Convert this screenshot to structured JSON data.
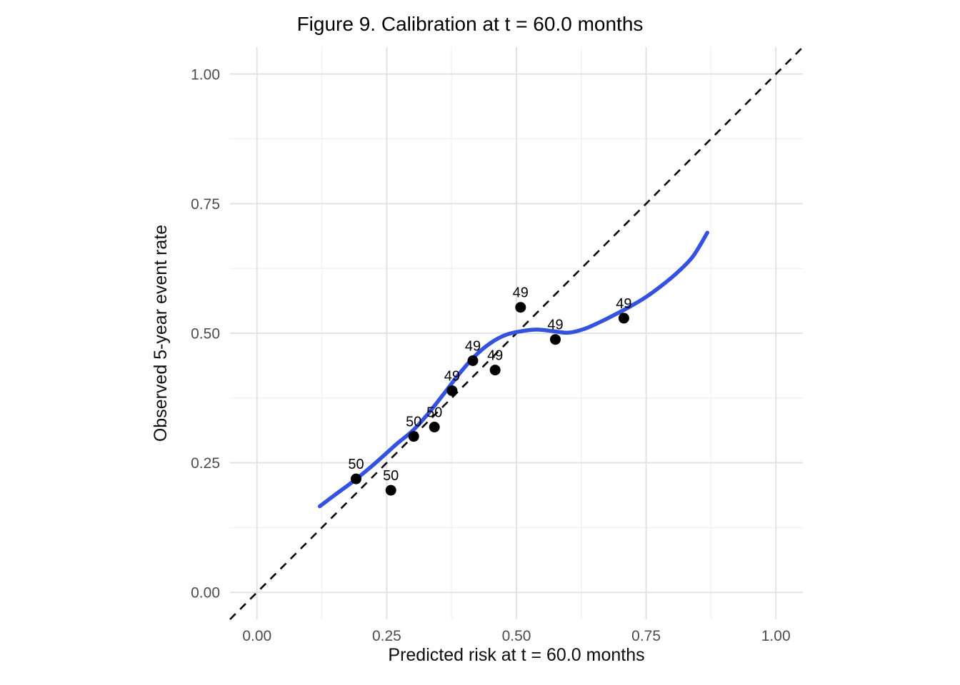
{
  "chart_data": {
    "type": "scatter",
    "title": "Figure 9. Calibration at t = 60.0 months",
    "xlabel": "Predicted risk at t = 60.0 months",
    "ylabel": "Observed 5-year event rate",
    "xlim": [
      -0.052,
      1.052
    ],
    "ylim": [
      -0.052,
      1.052
    ],
    "grid": "major+minor, light grey on white, no legend",
    "x_ticks": [
      {
        "value": 0.0,
        "label": "0.00"
      },
      {
        "value": 0.25,
        "label": "0.25"
      },
      {
        "value": 0.5,
        "label": "0.50"
      },
      {
        "value": 0.75,
        "label": "0.75"
      },
      {
        "value": 1.0,
        "label": "1.00"
      }
    ],
    "y_ticks": [
      {
        "value": 0.0,
        "label": "0.00"
      },
      {
        "value": 0.25,
        "label": "0.25"
      },
      {
        "value": 0.5,
        "label": "0.50"
      },
      {
        "value": 0.75,
        "label": "0.75"
      },
      {
        "value": 1.0,
        "label": "1.00"
      }
    ],
    "minor_ticks": [
      0.125,
      0.375,
      0.625,
      0.875
    ],
    "points": [
      {
        "x": 0.191,
        "y": 0.219,
        "label": "50"
      },
      {
        "x": 0.258,
        "y": 0.197,
        "label": "50"
      },
      {
        "x": 0.302,
        "y": 0.301,
        "label": "50"
      },
      {
        "x": 0.342,
        "y": 0.319,
        "label": "50"
      },
      {
        "x": 0.376,
        "y": 0.389,
        "label": "49"
      },
      {
        "x": 0.416,
        "y": 0.447,
        "label": "49"
      },
      {
        "x": 0.459,
        "y": 0.429,
        "label": "49"
      },
      {
        "x": 0.508,
        "y": 0.55,
        "label": "49"
      },
      {
        "x": 0.575,
        "y": 0.488,
        "label": "49"
      },
      {
        "x": 0.707,
        "y": 0.529,
        "label": "49"
      }
    ],
    "smooth_line": {
      "name": "loess-smooth",
      "points": [
        [
          0.121,
          0.166
        ],
        [
          0.15,
          0.188
        ],
        [
          0.18,
          0.21
        ],
        [
          0.21,
          0.234
        ],
        [
          0.24,
          0.26
        ],
        [
          0.27,
          0.287
        ],
        [
          0.3,
          0.312
        ],
        [
          0.33,
          0.345
        ],
        [
          0.36,
          0.383
        ],
        [
          0.39,
          0.422
        ],
        [
          0.42,
          0.456
        ],
        [
          0.45,
          0.481
        ],
        [
          0.48,
          0.497
        ],
        [
          0.51,
          0.504
        ],
        [
          0.54,
          0.507
        ],
        [
          0.57,
          0.504
        ],
        [
          0.6,
          0.501
        ],
        [
          0.63,
          0.508
        ],
        [
          0.66,
          0.521
        ],
        [
          0.69,
          0.536
        ],
        [
          0.72,
          0.552
        ],
        [
          0.75,
          0.57
        ],
        [
          0.78,
          0.592
        ],
        [
          0.81,
          0.617
        ],
        [
          0.84,
          0.648
        ],
        [
          0.868,
          0.694
        ]
      ]
    },
    "reference_line": {
      "name": "identity-line",
      "style": "dashed",
      "x1": -0.052,
      "y1": -0.052,
      "x2": 1.052,
      "y2": 1.052
    },
    "colors": {
      "smooth_line": "#3352E0",
      "reference_line": "#000000",
      "point": "#000000",
      "grid_major": "#E3E3E3",
      "grid_minor": "#F1F1F1",
      "tick_text": "#4D4D4D",
      "title_text": "#000000",
      "background": "#FFFFFF"
    }
  }
}
